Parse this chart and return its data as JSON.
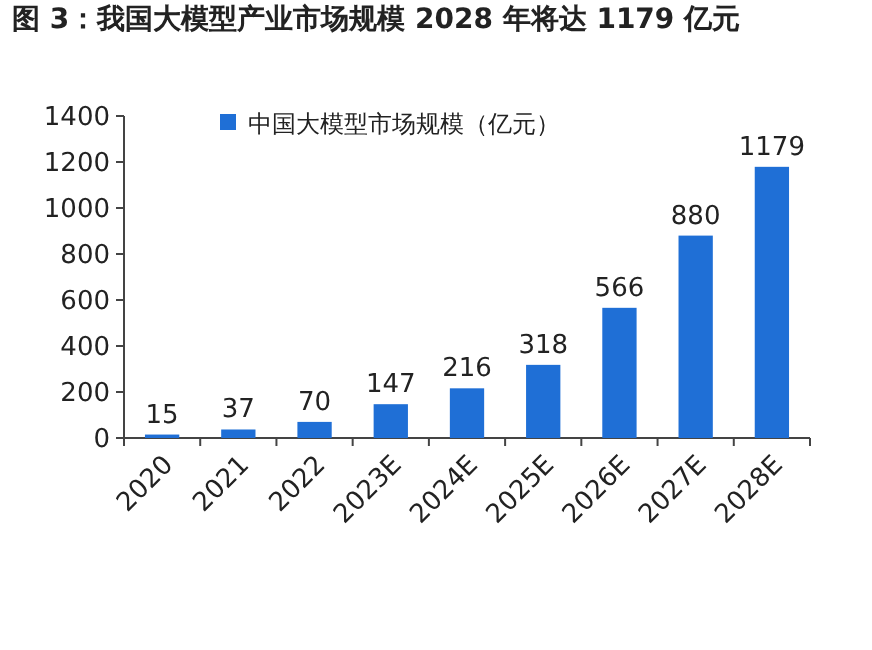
{
  "chart_data": {
    "type": "bar",
    "title": "图 3：我国大模型产业市场规模 2028 年将达 1179 亿元",
    "categories": [
      "2020",
      "2021",
      "2022",
      "2023E",
      "2024E",
      "2025E",
      "2026E",
      "2027E",
      "2028E"
    ],
    "series": [
      {
        "name": "中国大模型市场规模（亿元）",
        "color": "#1f6fd6",
        "values": [
          15,
          37,
          70,
          147,
          216,
          318,
          566,
          880,
          1179
        ]
      }
    ],
    "ylim": [
      0,
      1400
    ],
    "yticks": [
      0,
      200,
      400,
      600,
      800,
      1000,
      1200,
      1400
    ],
    "data_labels": true,
    "legend": "top",
    "grid": false
  }
}
